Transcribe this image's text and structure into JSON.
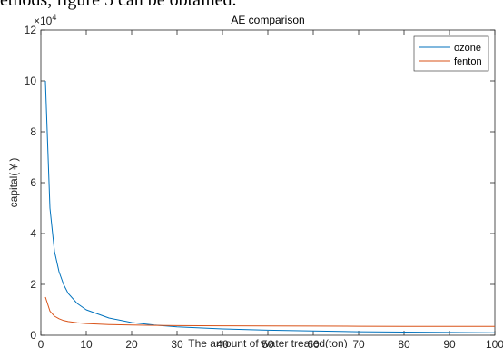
{
  "page_text": {
    "top_line": "ethods, figure 5 can be obtained."
  },
  "chart_data": {
    "type": "line",
    "title": "AE comparison",
    "xlabel": "The amount of water treated(ton)",
    "ylabel": "capital(￥)",
    "xlim": [
      0,
      100
    ],
    "ylim": [
      0,
      120000
    ],
    "x_ticks": [
      0,
      10,
      20,
      30,
      40,
      50,
      60,
      70,
      80,
      90,
      100
    ],
    "x_tick_labels": [
      "0",
      "10",
      "20",
      "30",
      "40",
      "50",
      "60",
      "70",
      "80",
      "90",
      "100"
    ],
    "y_ticks": [
      0,
      20000,
      40000,
      60000,
      80000,
      100000,
      120000
    ],
    "y_tick_labels": [
      "0",
      "2",
      "4",
      "6",
      "8",
      "10",
      "12"
    ],
    "y_exponent_label": "×10",
    "y_exponent_power": "4",
    "grid": false,
    "legend": "top-right",
    "colors": {
      "ozone": "#0072bd",
      "fenton": "#d95319",
      "axes": "#262626"
    },
    "series": [
      {
        "name": "ozone",
        "x": [
          1,
          2,
          3,
          4,
          5,
          6,
          8,
          10,
          15,
          20,
          25,
          30,
          40,
          50,
          60,
          70,
          80,
          90,
          100
        ],
        "y": [
          100000,
          50000,
          33000,
          25000,
          20000,
          16500,
          12500,
          10000,
          6800,
          5000,
          4000,
          3300,
          2500,
          2000,
          1700,
          1400,
          1250,
          1100,
          1000
        ]
      },
      {
        "name": "fenton",
        "x": [
          1,
          2,
          3,
          4,
          5,
          6,
          8,
          10,
          15,
          20,
          25,
          30,
          40,
          50,
          60,
          70,
          80,
          90,
          100
        ],
        "y": [
          15000,
          9500,
          7500,
          6500,
          5800,
          5400,
          4900,
          4600,
          4200,
          4000,
          3900,
          3800,
          3700,
          3650,
          3600,
          3550,
          3500,
          3500,
          3450
        ]
      }
    ]
  }
}
